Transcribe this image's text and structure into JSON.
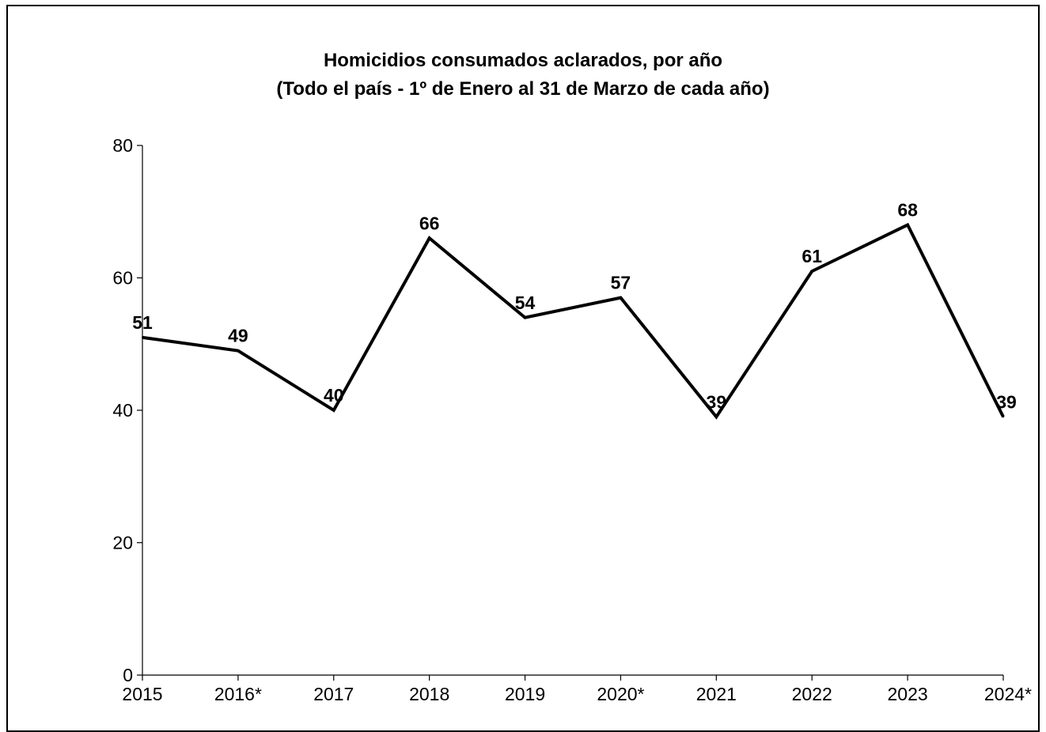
{
  "chart_data": {
    "type": "line",
    "title": "Homicidios consumados aclarados, por año",
    "subtitle": "(Todo el país - 1º de Enero al 31 de Marzo de cada año)",
    "xlabel": "",
    "ylabel": "",
    "categories": [
      "2015",
      "2016*",
      "2017",
      "2018",
      "2019",
      "2020*",
      "2021",
      "2022",
      "2023",
      "2024*"
    ],
    "series": [
      {
        "values": [
          51,
          49,
          40,
          66,
          54,
          57,
          39,
          61,
          68,
          39
        ]
      }
    ],
    "ylim": [
      0,
      80
    ],
    "yticks": [
      0,
      20,
      40,
      60,
      80
    ],
    "grid": false,
    "legend": "none",
    "data_labels": true,
    "line_color": "#000000"
  }
}
